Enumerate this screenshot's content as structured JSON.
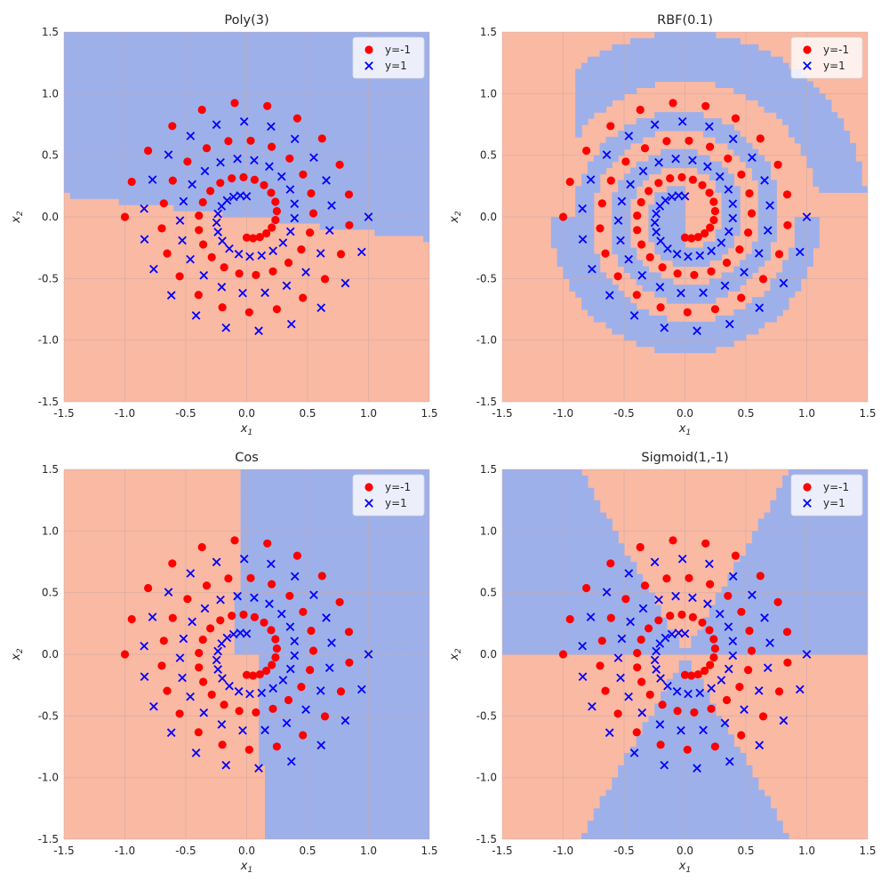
{
  "figure": {
    "colors": {
      "negative": "#ff0000",
      "positive": "#0000ff",
      "region_negative": "#f9b9a3",
      "region_positive": "#9eb0ea",
      "grid": "#c9a9a6",
      "boundary": "#6f7ed8"
    }
  },
  "chart_data": [
    {
      "type": "scatter",
      "title": "Poly(3)",
      "xlabel": "x_1",
      "ylabel": "x_2",
      "xlim": [
        -1.5,
        1.5
      ],
      "ylim": [
        -1.5,
        1.5
      ],
      "xticks": [
        "-1.5",
        "-1.0",
        "-0.5",
        "0.0",
        "0.5",
        "1.0",
        "1.5"
      ],
      "yticks": [
        "-1.5",
        "-1.0",
        "-0.5",
        "0.0",
        "0.5",
        "1.0",
        "1.5"
      ],
      "legend": {
        "placement": "top-right",
        "entries": [
          "y=-1",
          "y=1"
        ]
      },
      "grid": true,
      "series": [
        {
          "name": "y=-1",
          "marker": "circle",
          "spiral": {
            "radius_start": 1.0,
            "radius_end": 0.167,
            "turns": 2.75,
            "phase": 0,
            "points": 60
          }
        },
        {
          "name": "y=1",
          "marker": "x",
          "spiral": {
            "radius_start": 1.0,
            "radius_end": 0.167,
            "turns": 2.75,
            "phase": 180,
            "points": 60
          }
        }
      ],
      "decision_region": {
        "positive_side": "upper half, boundary near y=0.0"
      }
    },
    {
      "type": "scatter",
      "title": "RBF(0.1)",
      "xlabel": "x_1",
      "ylabel": "x_2",
      "xlim": [
        -1.5,
        1.5
      ],
      "ylim": [
        -1.5,
        1.5
      ],
      "xticks": [
        "-1.5",
        "-1.0",
        "-0.5",
        "0.0",
        "0.5",
        "1.0",
        "1.5"
      ],
      "yticks": [
        "-1.5",
        "-1.0",
        "-0.5",
        "0.0",
        "0.5",
        "1.0",
        "1.5"
      ],
      "legend": {
        "placement": "top-right",
        "entries": [
          "y=-1",
          "y=1"
        ]
      },
      "grid": true,
      "series": [
        {
          "name": "y=-1",
          "marker": "circle"
        },
        {
          "name": "y=1",
          "marker": "x"
        }
      ],
      "decision_region": {
        "positive_side": "spiral band following y=1 arm"
      }
    },
    {
      "type": "scatter",
      "title": "Cos",
      "xlabel": "x_1",
      "ylabel": "x_2",
      "xlim": [
        -1.5,
        1.5
      ],
      "ylim": [
        -1.5,
        1.5
      ],
      "xticks": [
        "-1.5",
        "-1.0",
        "-0.5",
        "0.0",
        "0.5",
        "1.0",
        "1.5"
      ],
      "yticks": [
        "-1.5",
        "-1.0",
        "-0.5",
        "0.0",
        "0.5",
        "1.0",
        "1.5"
      ],
      "legend": {
        "placement": "top-right",
        "entries": [
          "y=-1",
          "y=1"
        ]
      },
      "grid": true,
      "series": [
        {
          "name": "y=-1",
          "marker": "circle"
        },
        {
          "name": "y=1",
          "marker": "x"
        }
      ],
      "decision_region": {
        "positive_side": "right half, boundary near x=0.0"
      }
    },
    {
      "type": "scatter",
      "title": "Sigmoid(1,-1)",
      "xlabel": "x_1",
      "ylabel": "x_2",
      "xlim": [
        -1.5,
        1.5
      ],
      "ylim": [
        -1.5,
        1.5
      ],
      "xticks": [
        "-1.5",
        "-1.0",
        "-0.5",
        "0.0",
        "0.5",
        "1.0",
        "1.5"
      ],
      "yticks": [
        "-1.5",
        "-1.0",
        "-0.5",
        "0.0",
        "0.5",
        "1.0",
        "1.5"
      ],
      "legend": {
        "placement": "top-right",
        "entries": [
          "y=-1",
          "y=1"
        ]
      },
      "grid": true,
      "series": [
        {
          "name": "y=-1",
          "marker": "circle"
        },
        {
          "name": "y=1",
          "marker": "x"
        }
      ],
      "decision_region": {
        "positive_side": "alternating angular sectors"
      }
    }
  ]
}
